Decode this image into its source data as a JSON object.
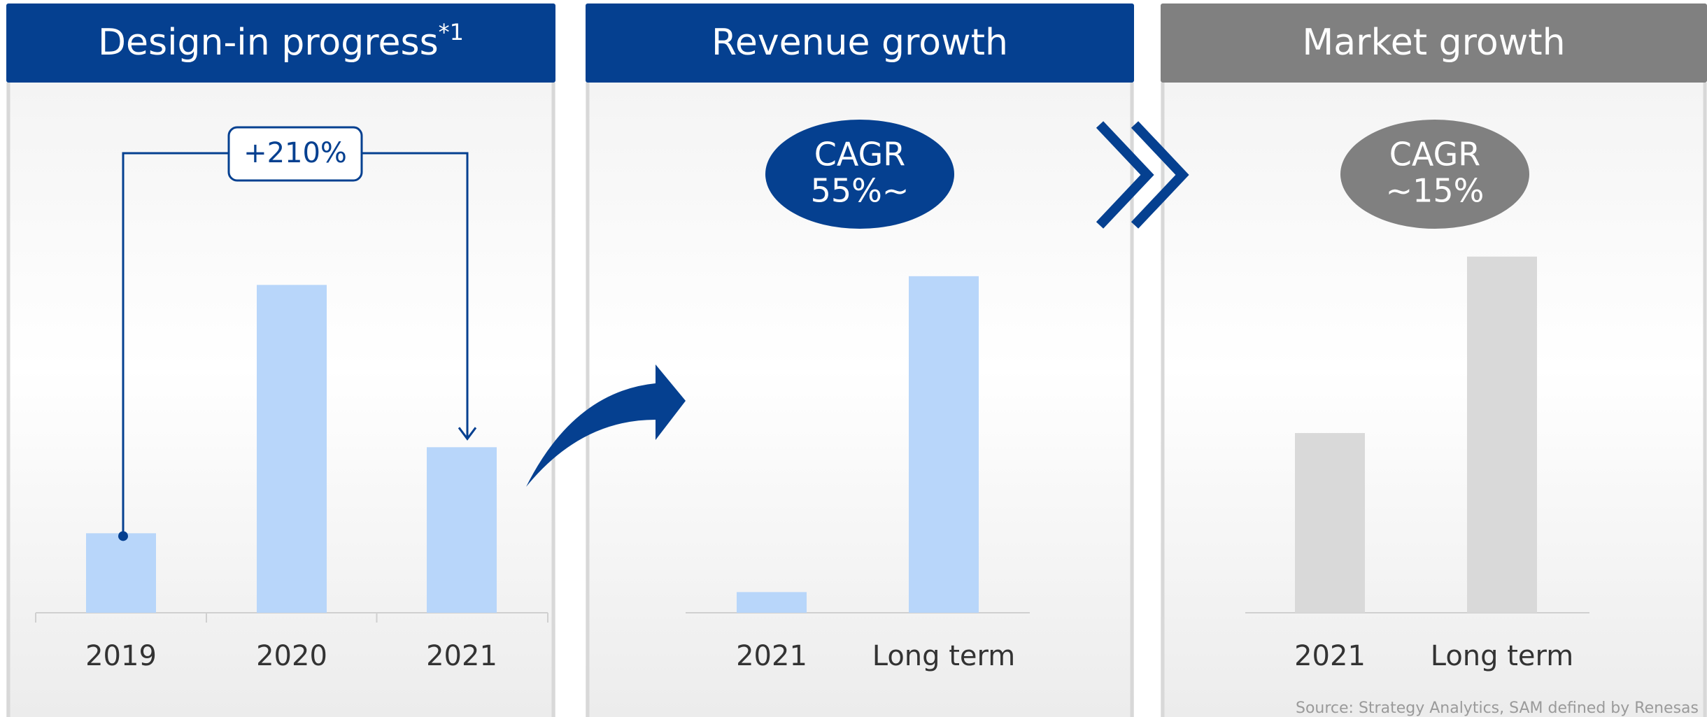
{
  "chart_data": [
    {
      "type": "bar",
      "title": "Design-in progress",
      "title_note": "*1",
      "header_color": "#054090",
      "categories": [
        "2019",
        "2020",
        "2021"
      ],
      "values": [
        73,
        301,
        152
      ],
      "color": "#b8d6fa",
      "ylim": [
        0,
        350
      ],
      "annotation": [
        "+210%"
      ]
    },
    {
      "type": "bar",
      "title": "Revenue growth",
      "header_color": "#054090",
      "categories": [
        "2021",
        "Long term"
      ],
      "values": [
        19,
        309
      ],
      "color": "#b8d6fa",
      "ylim": [
        0,
        350
      ],
      "annotation": [
        "CAGR",
        "55%~"
      ],
      "annotation_color": "#054090"
    },
    {
      "type": "bar",
      "title": "Market growth",
      "header_color": "#808080",
      "categories": [
        "2021",
        "Long term"
      ],
      "values": [
        165,
        327
      ],
      "color": "#d9d9d9",
      "ylim": [
        0,
        350
      ],
      "annotation": [
        "CAGR",
        "~15%"
      ],
      "annotation_color": "#808080"
    }
  ],
  "source": "Source: Strategy Analytics, SAM defined by Renesas"
}
